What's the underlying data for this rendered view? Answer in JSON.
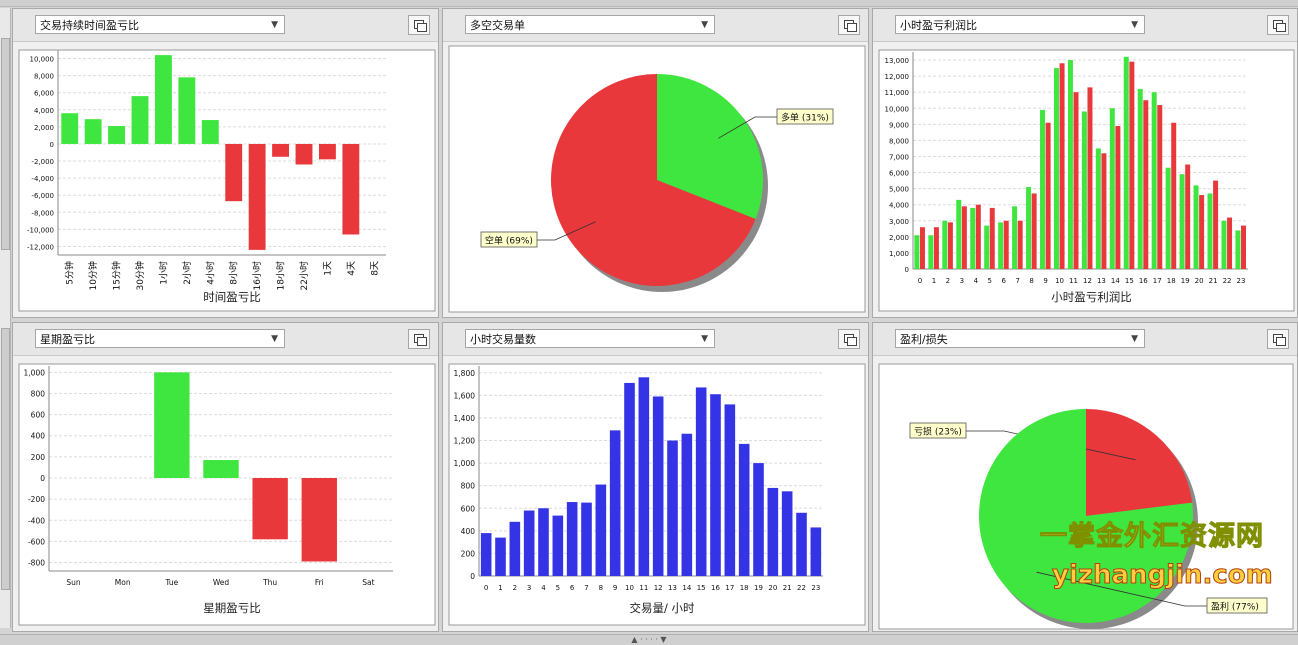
{
  "panels": [
    {
      "id": "p1",
      "dropdown": "交易持续时间盈亏比",
      "chart_index": 0
    },
    {
      "id": "p2",
      "dropdown": "多空交易单",
      "chart_index": 1
    },
    {
      "id": "p3",
      "dropdown": "小时盈亏利润比",
      "chart_index": 2
    },
    {
      "id": "p4",
      "dropdown": "星期盈亏比",
      "chart_index": 3
    },
    {
      "id": "p5",
      "dropdown": "小时交易量数",
      "chart_index": 4
    },
    {
      "id": "p6",
      "dropdown": "盈利/损失",
      "chart_index": 5
    }
  ],
  "watermark": {
    "line1": "一掌金外汇资源网",
    "line2": "yizhangjin.com"
  },
  "bottombar": {
    "text": "▲ · · · · ▼"
  },
  "colors": {
    "green": "#3fe63f",
    "red": "#e8383c",
    "blue": "#3434e6"
  },
  "chart_data": [
    {
      "type": "bar",
      "categories": [
        "5分钟",
        "10分钟",
        "15分钟",
        "30分钟",
        "1小时",
        "2小时",
        "4小时",
        "8小时",
        "16小时",
        "18小时",
        "22小时",
        "1天",
        "4天",
        "8天"
      ],
      "values": [
        3600,
        2900,
        2100,
        5600,
        10400,
        7800,
        2800,
        -6700,
        -12400,
        -1500,
        -2400,
        -1800,
        -10600,
        0
      ],
      "ylim": [
        -13000,
        11000
      ],
      "yticks": [
        10000,
        8000,
        6000,
        4000,
        2000,
        0,
        -2000,
        -4000,
        -6000,
        -8000,
        -10000,
        -12000
      ],
      "xlabel": "时间盈亏比",
      "grid": true
    },
    {
      "type": "pie",
      "slices": [
        {
          "label": "多单 (31%)",
          "value": 31,
          "color": "#3fe63f"
        },
        {
          "label": "空单 (69%)",
          "value": 69,
          "color": "#e8383c"
        }
      ]
    },
    {
      "type": "bar",
      "categories": [
        "0",
        "1",
        "2",
        "3",
        "4",
        "5",
        "6",
        "7",
        "8",
        "9",
        "10",
        "11",
        "12",
        "13",
        "14",
        "15",
        "16",
        "17",
        "18",
        "19",
        "20",
        "21",
        "22",
        "23"
      ],
      "series": [
        {
          "color": "#3fe63f",
          "values": [
            2100,
            2100,
            3000,
            4300,
            3800,
            2700,
            2900,
            3900,
            5100,
            9900,
            12500,
            13000,
            9800,
            7500,
            10000,
            13200,
            11200,
            11000,
            6300,
            5900,
            5200,
            4700,
            3000,
            2400
          ]
        },
        {
          "color": "#e8383c",
          "values": [
            2600,
            2600,
            2900,
            3900,
            4000,
            3800,
            3000,
            3000,
            4700,
            9100,
            12800,
            11000,
            11300,
            7200,
            8900,
            12900,
            10500,
            10200,
            9100,
            6500,
            4600,
            5500,
            3200,
            2700
          ]
        }
      ],
      "ylim": [
        0,
        13500
      ],
      "yticks": [
        13000,
        12000,
        11000,
        10000,
        9000,
        8000,
        7000,
        6000,
        5000,
        4000,
        3000,
        2000,
        1000,
        0
      ],
      "xlabel": "小时盈亏利润比",
      "grid": true
    },
    {
      "type": "bar",
      "categories": [
        "Sun",
        "Mon",
        "Tue",
        "Wed",
        "Thu",
        "Fri",
        "Sat"
      ],
      "values": [
        0,
        0,
        1000,
        170,
        -580,
        -790,
        0
      ],
      "ylim": [
        -880,
        1060
      ],
      "yticks": [
        1000,
        800,
        600,
        400,
        200,
        0,
        -200,
        -400,
        -600,
        -800
      ],
      "xlabel": "星期盈亏比",
      "grid": true
    },
    {
      "type": "bar",
      "categories": [
        "0",
        "1",
        "2",
        "3",
        "4",
        "5",
        "6",
        "7",
        "8",
        "9",
        "10",
        "11",
        "12",
        "13",
        "14",
        "15",
        "16",
        "17",
        "18",
        "19",
        "20",
        "21",
        "22",
        "23"
      ],
      "values": [
        380,
        340,
        480,
        580,
        600,
        535,
        655,
        650,
        810,
        1290,
        1710,
        1760,
        1590,
        1200,
        1260,
        1670,
        1610,
        1520,
        1170,
        1000,
        780,
        750,
        560,
        430
      ],
      "ylim": [
        0,
        1860
      ],
      "yticks": [
        1800,
        1600,
        1400,
        1200,
        1000,
        800,
        600,
        400,
        200,
        0
      ],
      "xlabel": "交易量/ 小时",
      "grid": true
    },
    {
      "type": "pie",
      "slices": [
        {
          "label": "亏损 (23%)",
          "value": 23,
          "color": "#e8383c"
        },
        {
          "label": "盈利 (77%)",
          "value": 77,
          "color": "#3fe63f"
        }
      ]
    }
  ]
}
